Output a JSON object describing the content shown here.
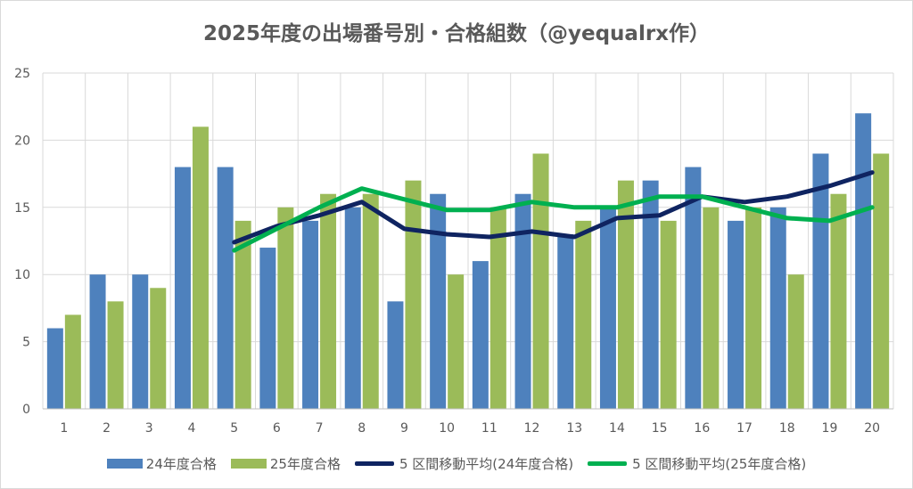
{
  "chart_data": {
    "type": "bar",
    "title": "2025年度の出場番号別・合格組数（@yequalrx作）",
    "categories": [
      "1",
      "2",
      "3",
      "4",
      "5",
      "6",
      "7",
      "8",
      "9",
      "10",
      "11",
      "12",
      "13",
      "14",
      "15",
      "16",
      "17",
      "18",
      "19",
      "20"
    ],
    "ylim": [
      0,
      25
    ],
    "yticks": [
      "0",
      "5",
      "10",
      "15",
      "20",
      "25"
    ],
    "grid": true,
    "legend_position": "bottom",
    "series": [
      {
        "name": "24年度合格",
        "kind": "bar",
        "color": "#4e81bd",
        "values": [
          6,
          10,
          10,
          18,
          18,
          12,
          14,
          15,
          8,
          16,
          11,
          16,
          13,
          15,
          17,
          18,
          14,
          15,
          19,
          22
        ]
      },
      {
        "name": "25年度合格",
        "kind": "bar",
        "color": "#9bbb59",
        "values": [
          7,
          8,
          9,
          21,
          14,
          15,
          16,
          16,
          17,
          10,
          15,
          19,
          14,
          17,
          14,
          15,
          15,
          10,
          16,
          19
        ]
      },
      {
        "name": "5 区間移動平均(24年度合格)",
        "kind": "line",
        "color": "#0f2461",
        "values": [
          null,
          null,
          null,
          null,
          12.4,
          13.6,
          14.4,
          15.4,
          13.4,
          13.0,
          12.8,
          13.2,
          12.8,
          14.2,
          14.4,
          15.8,
          15.4,
          15.8,
          16.6,
          17.6
        ]
      },
      {
        "name": "5 区間移動平均(25年度合格)",
        "kind": "line",
        "color": "#00b050",
        "values": [
          null,
          null,
          null,
          null,
          11.8,
          13.4,
          15.0,
          16.4,
          15.6,
          14.8,
          14.8,
          15.4,
          15.0,
          15.0,
          15.8,
          15.8,
          15.0,
          14.2,
          14.0,
          15.0
        ]
      }
    ]
  }
}
